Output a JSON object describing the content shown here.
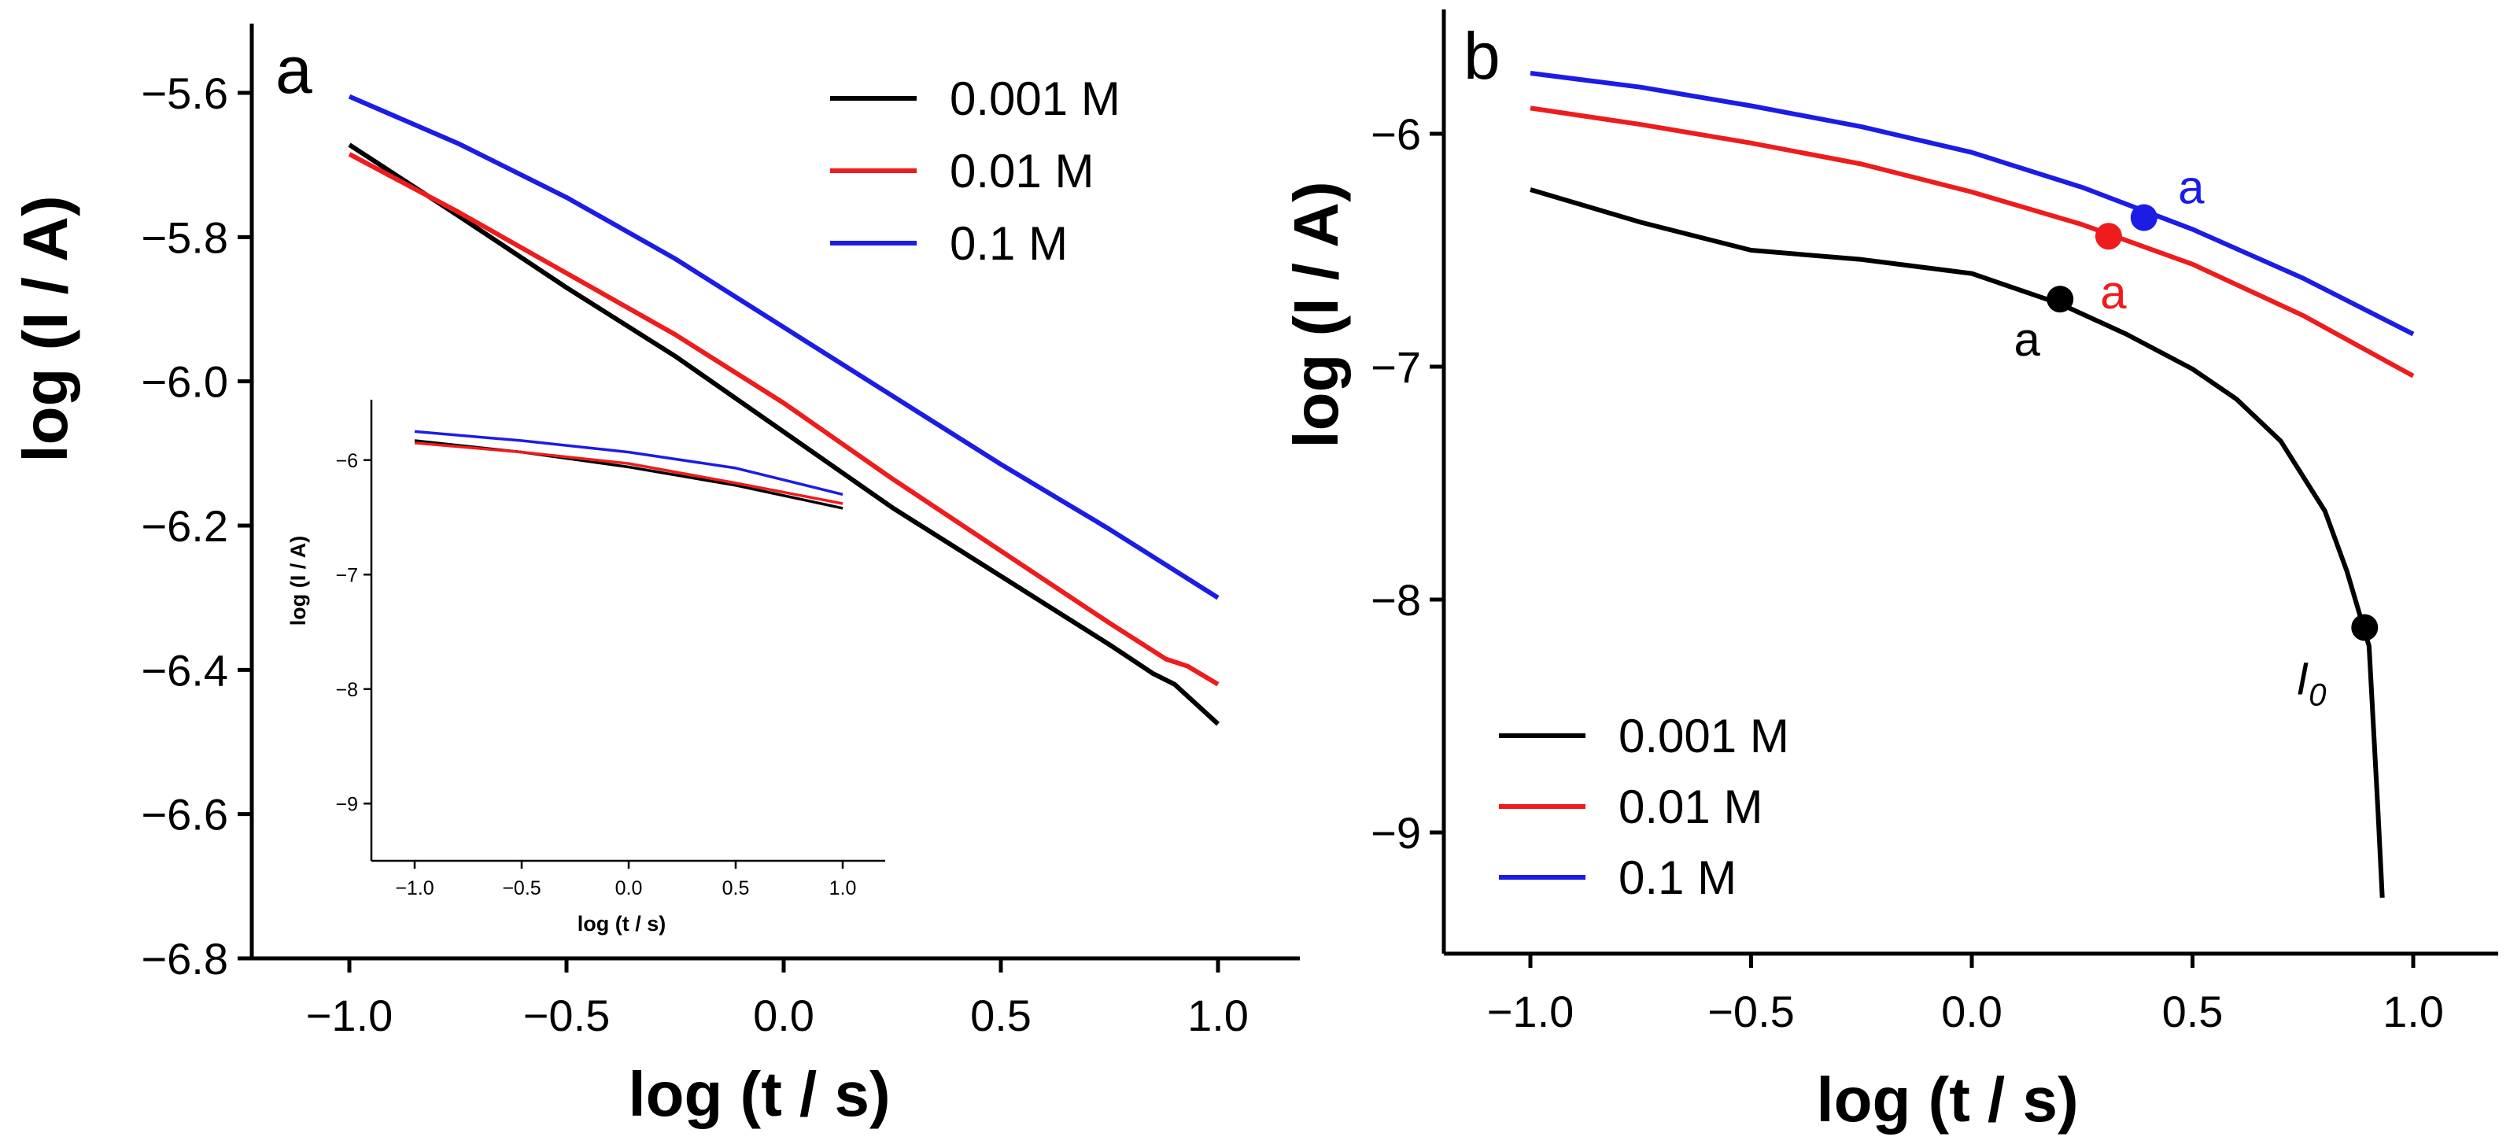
{
  "chart_data": [
    {
      "panel": "a",
      "type": "line",
      "xlabel": "log (t / s)",
      "ylabel": "log (I / A)",
      "xlim": [
        -1.2,
        1.2
      ],
      "ylim": [
        -6.8,
        -5.5
      ],
      "xticks": [
        -1.0,
        -0.5,
        0.0,
        0.5,
        1.0
      ],
      "xtick_labels": [
        "−1.0",
        "−0.5",
        "0.0",
        "0.5",
        "1.0"
      ],
      "yticks": [
        -6.8,
        -6.6,
        -6.4,
        -6.2,
        -6.0,
        -5.8,
        -5.6
      ],
      "ytick_labels": [
        "−6.8",
        "−6.6",
        "−6.4",
        "−6.2",
        "−6.0",
        "−5.8",
        "−5.6"
      ],
      "legend_position": "top-right",
      "series": [
        {
          "name": "0.001 M",
          "color": "#000000",
          "x": [
            -1.0,
            -0.75,
            -0.5,
            -0.25,
            0.0,
            0.25,
            0.5,
            0.75,
            0.85,
            0.9,
            1.0
          ],
          "y": [
            -5.672,
            -5.77,
            -5.87,
            -5.965,
            -6.07,
            -6.175,
            -6.27,
            -6.365,
            -6.405,
            -6.42,
            -6.475
          ]
        },
        {
          "name": "0.01 M",
          "color": "#ee1c1c",
          "x": [
            -1.0,
            -0.75,
            -0.5,
            -0.25,
            0.0,
            0.25,
            0.5,
            0.75,
            0.88,
            0.93,
            1.0
          ],
          "y": [
            -5.685,
            -5.765,
            -5.85,
            -5.935,
            -6.03,
            -6.135,
            -6.235,
            -6.335,
            -6.385,
            -6.395,
            -6.42
          ]
        },
        {
          "name": "0.1 M",
          "color": "#1c1ce6",
          "x": [
            -1.0,
            -0.75,
            -0.5,
            -0.25,
            0.0,
            0.25,
            0.5,
            0.75,
            1.0
          ],
          "y": [
            -5.605,
            -5.67,
            -5.745,
            -5.83,
            -5.925,
            -6.02,
            -6.115,
            -6.205,
            -6.3
          ]
        }
      ],
      "inset": {
        "xlabel": "log (t / s)",
        "ylabel": "log (I / A)",
        "xlim": [
          -1.2,
          1.2
        ],
        "ylim": [
          -9.5,
          -5.5
        ],
        "xticks": [
          -1.0,
          -0.5,
          0.0,
          0.5,
          1.0
        ],
        "xtick_labels": [
          "−1.0",
          "−0.5",
          "0.0",
          "0.5",
          "1.0"
        ],
        "yticks": [
          -9,
          -8,
          -7,
          -6
        ],
        "ytick_labels": [
          "−9",
          "−8",
          "−7",
          "−6"
        ],
        "series": [
          {
            "name": "0.001 M",
            "color": "#000000",
            "x": [
              -1.0,
              -0.5,
              0.0,
              0.5,
              1.0
            ],
            "y": [
              -5.83,
              -5.93,
              -6.06,
              -6.22,
              -6.42
            ]
          },
          {
            "name": "0.01 M",
            "color": "#ee1c1c",
            "x": [
              -1.0,
              -0.5,
              0.0,
              0.5,
              1.0
            ],
            "y": [
              -5.85,
              -5.93,
              -6.03,
              -6.2,
              -6.38
            ]
          },
          {
            "name": "0.1 M",
            "color": "#1c1ce6",
            "x": [
              -1.0,
              -0.5,
              0.0,
              0.5,
              1.0
            ],
            "y": [
              -5.75,
              -5.83,
              -5.93,
              -6.07,
              -6.3
            ]
          }
        ]
      }
    },
    {
      "panel": "b",
      "type": "line",
      "xlabel": "log (t / s)",
      "ylabel": "log (I / A)",
      "xlim": [
        -1.2,
        1.2
      ],
      "ylim": [
        -9.5,
        -5.5
      ],
      "xticks": [
        -1.0,
        -0.5,
        0.0,
        0.5,
        1.0
      ],
      "xtick_labels": [
        "−1.0",
        "−0.5",
        "0.0",
        "0.5",
        "1.0"
      ],
      "yticks": [
        -9,
        -8,
        -7,
        -6
      ],
      "ytick_labels": [
        "−9",
        "−8",
        "−7",
        "−6"
      ],
      "legend_position": "bottom-left",
      "series": [
        {
          "name": "0.001 M",
          "color": "#000000",
          "x": [
            -1.0,
            -0.75,
            -0.5,
            -0.25,
            0.0,
            0.2,
            0.35,
            0.5,
            0.6,
            0.7,
            0.8,
            0.85,
            0.9,
            0.92,
            0.93
          ],
          "y": [
            -6.24,
            -6.38,
            -6.5,
            -6.54,
            -6.6,
            -6.73,
            -6.86,
            -7.01,
            -7.14,
            -7.32,
            -7.62,
            -7.88,
            -8.2,
            -8.9,
            -9.28
          ]
        },
        {
          "name": "0.01 M",
          "color": "#ee1c1c",
          "x": [
            -1.0,
            -0.75,
            -0.5,
            -0.25,
            0.0,
            0.25,
            0.5,
            0.75,
            1.0
          ],
          "y": [
            -5.89,
            -5.96,
            -6.04,
            -6.13,
            -6.25,
            -6.39,
            -6.56,
            -6.78,
            -7.04
          ]
        },
        {
          "name": "0.1 M",
          "color": "#1c1ce6",
          "x": [
            -1.0,
            -0.75,
            -0.5,
            -0.25,
            0.0,
            0.25,
            0.5,
            0.75,
            1.0
          ],
          "y": [
            -5.74,
            -5.8,
            -5.88,
            -5.97,
            -6.08,
            -6.23,
            -6.41,
            -6.62,
            -6.86
          ]
        }
      ],
      "markers": [
        {
          "label": "a",
          "series": "0.001 M",
          "x": 0.2,
          "y": -6.71,
          "color": "#000000",
          "italic": false,
          "label_pos": "below-left"
        },
        {
          "label": "a",
          "series": "0.01 M",
          "x": 0.31,
          "y": -6.44,
          "color": "#ee1c1c",
          "italic": false,
          "label_pos": "below"
        },
        {
          "label": "a",
          "series": "0.1 M",
          "x": 0.39,
          "y": -6.36,
          "color": "#1c1ce6",
          "italic": false,
          "label_pos": "above-right"
        },
        {
          "label": "I",
          "sub": "0",
          "series": "0.001 M",
          "x": 0.89,
          "y": -8.12,
          "color": "#000000",
          "italic": true,
          "label_pos": "below-left"
        }
      ]
    }
  ]
}
